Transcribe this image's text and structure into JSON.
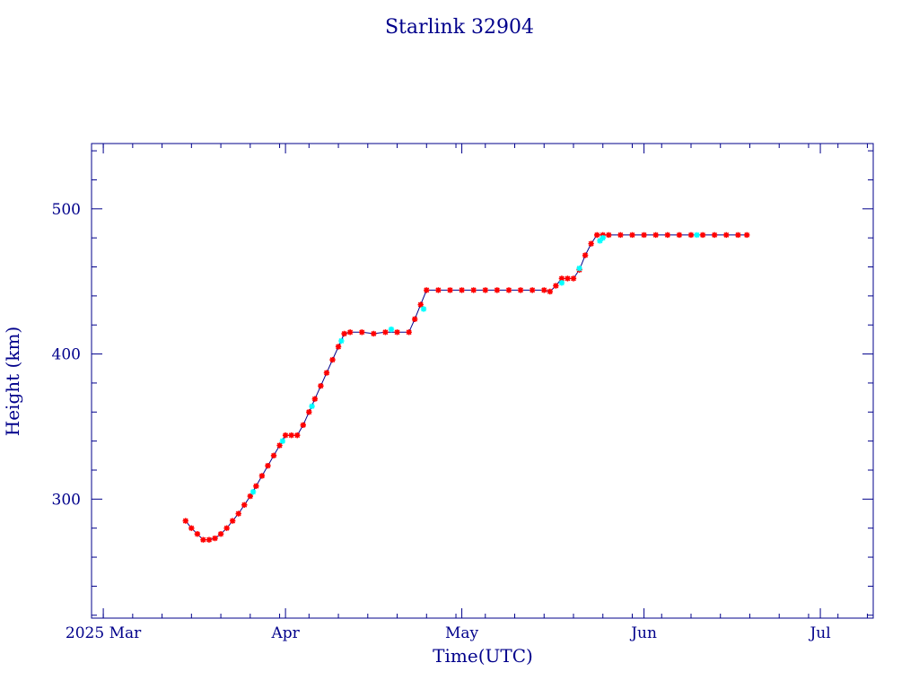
{
  "chart_data": {
    "type": "scatter",
    "title": "Starlink 32904",
    "xlabel": "Time(UTC)",
    "ylabel": "Height (km)",
    "x_axis": {
      "range": [
        "2025-02-27",
        "2025-07-10"
      ],
      "ticks": [
        {
          "date": "2025-03-01",
          "label": "2025 Mar"
        },
        {
          "date": "2025-04-01",
          "label": "Apr"
        },
        {
          "date": "2025-05-01",
          "label": "May"
        },
        {
          "date": "2025-06-01",
          "label": "Jun"
        },
        {
          "date": "2025-07-01",
          "label": "Jul"
        }
      ]
    },
    "y_axis": {
      "range": [
        218,
        545
      ],
      "ticks": [
        300,
        400,
        500
      ],
      "labels": [
        "300",
        "400",
        "500"
      ]
    },
    "grid": false,
    "series": [
      {
        "color": "#ff0000",
        "marker": "star",
        "points": [
          {
            "x": "2025-03-15T00:00Z",
            "y": 285
          },
          {
            "x": "2025-03-16T00:00Z",
            "y": 280
          },
          {
            "x": "2025-03-17T00:00Z",
            "y": 276
          },
          {
            "x": "2025-03-18T00:00Z",
            "y": 272
          },
          {
            "x": "2025-03-19T00:00Z",
            "y": 272
          },
          {
            "x": "2025-03-20T00:00Z",
            "y": 273
          },
          {
            "x": "2025-03-21T00:00Z",
            "y": 276
          },
          {
            "x": "2025-03-22T00:00Z",
            "y": 280
          },
          {
            "x": "2025-03-23T00:00Z",
            "y": 285
          },
          {
            "x": "2025-03-24T00:00Z",
            "y": 290
          },
          {
            "x": "2025-03-25T00:00Z",
            "y": 296
          },
          {
            "x": "2025-03-26T00:00Z",
            "y": 302
          },
          {
            "x": "2025-03-27T00:00Z",
            "y": 309
          },
          {
            "x": "2025-03-28T00:00Z",
            "y": 316
          },
          {
            "x": "2025-03-29T00:00Z",
            "y": 323
          },
          {
            "x": "2025-03-30T00:00Z",
            "y": 330
          },
          {
            "x": "2025-03-31T00:00Z",
            "y": 337
          },
          {
            "x": "2025-04-01T00:00Z",
            "y": 344
          },
          {
            "x": "2025-04-02T00:00Z",
            "y": 344
          },
          {
            "x": "2025-04-03T00:00Z",
            "y": 344
          },
          {
            "x": "2025-04-04T00:00Z",
            "y": 351
          },
          {
            "x": "2025-04-05T00:00Z",
            "y": 360
          },
          {
            "x": "2025-04-06T00:00Z",
            "y": 369
          },
          {
            "x": "2025-04-07T00:00Z",
            "y": 378
          },
          {
            "x": "2025-04-08T00:00Z",
            "y": 387
          },
          {
            "x": "2025-04-09T00:00Z",
            "y": 396
          },
          {
            "x": "2025-04-10T00:00Z",
            "y": 405
          },
          {
            "x": "2025-04-11T00:00Z",
            "y": 414
          },
          {
            "x": "2025-04-12T00:00Z",
            "y": 415
          },
          {
            "x": "2025-04-14T00:00Z",
            "y": 415
          },
          {
            "x": "2025-04-16T00:00Z",
            "y": 414
          },
          {
            "x": "2025-04-18T00:00Z",
            "y": 415
          },
          {
            "x": "2025-04-20T00:00Z",
            "y": 415
          },
          {
            "x": "2025-04-22T00:00Z",
            "y": 415
          },
          {
            "x": "2025-04-23T00:00Z",
            "y": 424
          },
          {
            "x": "2025-04-24T00:00Z",
            "y": 434
          },
          {
            "x": "2025-04-25T00:00Z",
            "y": 444
          },
          {
            "x": "2025-04-27T00:00Z",
            "y": 444
          },
          {
            "x": "2025-04-29T00:00Z",
            "y": 444
          },
          {
            "x": "2025-05-01T00:00Z",
            "y": 444
          },
          {
            "x": "2025-05-03T00:00Z",
            "y": 444
          },
          {
            "x": "2025-05-05T00:00Z",
            "y": 444
          },
          {
            "x": "2025-05-07T00:00Z",
            "y": 444
          },
          {
            "x": "2025-05-09T00:00Z",
            "y": 444
          },
          {
            "x": "2025-05-11T00:00Z",
            "y": 444
          },
          {
            "x": "2025-05-13T00:00Z",
            "y": 444
          },
          {
            "x": "2025-05-15T00:00Z",
            "y": 444
          },
          {
            "x": "2025-05-16T00:00Z",
            "y": 443
          },
          {
            "x": "2025-05-17T00:00Z",
            "y": 447
          },
          {
            "x": "2025-05-18T00:00Z",
            "y": 452
          },
          {
            "x": "2025-05-19T00:00Z",
            "y": 452
          },
          {
            "x": "2025-05-20T00:00Z",
            "y": 452
          },
          {
            "x": "2025-05-21T00:00Z",
            "y": 458
          },
          {
            "x": "2025-05-22T00:00Z",
            "y": 468
          },
          {
            "x": "2025-05-23T00:00Z",
            "y": 476
          },
          {
            "x": "2025-05-24T00:00Z",
            "y": 482
          },
          {
            "x": "2025-05-25T00:00Z",
            "y": 482
          },
          {
            "x": "2025-05-26T00:00Z",
            "y": 482
          },
          {
            "x": "2025-05-28T00:00Z",
            "y": 482
          },
          {
            "x": "2025-05-30T00:00Z",
            "y": 482
          },
          {
            "x": "2025-06-01T00:00Z",
            "y": 482
          },
          {
            "x": "2025-06-03T00:00Z",
            "y": 482
          },
          {
            "x": "2025-06-05T00:00Z",
            "y": 482
          },
          {
            "x": "2025-06-07T00:00Z",
            "y": 482
          },
          {
            "x": "2025-06-09T00:00Z",
            "y": 482
          },
          {
            "x": "2025-06-11T00:00Z",
            "y": 482
          },
          {
            "x": "2025-06-13T00:00Z",
            "y": 482
          },
          {
            "x": "2025-06-15T00:00Z",
            "y": 482
          },
          {
            "x": "2025-06-17T00:00Z",
            "y": 482
          },
          {
            "x": "2025-06-18T12:00Z",
            "y": 482
          }
        ]
      },
      {
        "color": "#00ffff",
        "marker": "star",
        "points": [
          {
            "x": "2025-03-26T12:00Z",
            "y": 305
          },
          {
            "x": "2025-03-31T12:00Z",
            "y": 340
          },
          {
            "x": "2025-04-05T12:00Z",
            "y": 364
          },
          {
            "x": "2025-04-10T12:00Z",
            "y": 409
          },
          {
            "x": "2025-04-19T00:00Z",
            "y": 417
          },
          {
            "x": "2025-04-24T12:00Z",
            "y": 431
          },
          {
            "x": "2025-05-18T00:00Z",
            "y": 449
          },
          {
            "x": "2025-05-21T00:00Z",
            "y": 459
          },
          {
            "x": "2025-05-24T12:00Z",
            "y": 478
          },
          {
            "x": "2025-05-25T00:00Z",
            "y": 480
          },
          {
            "x": "2025-06-10T00:00Z",
            "y": 482
          }
        ]
      }
    ]
  }
}
